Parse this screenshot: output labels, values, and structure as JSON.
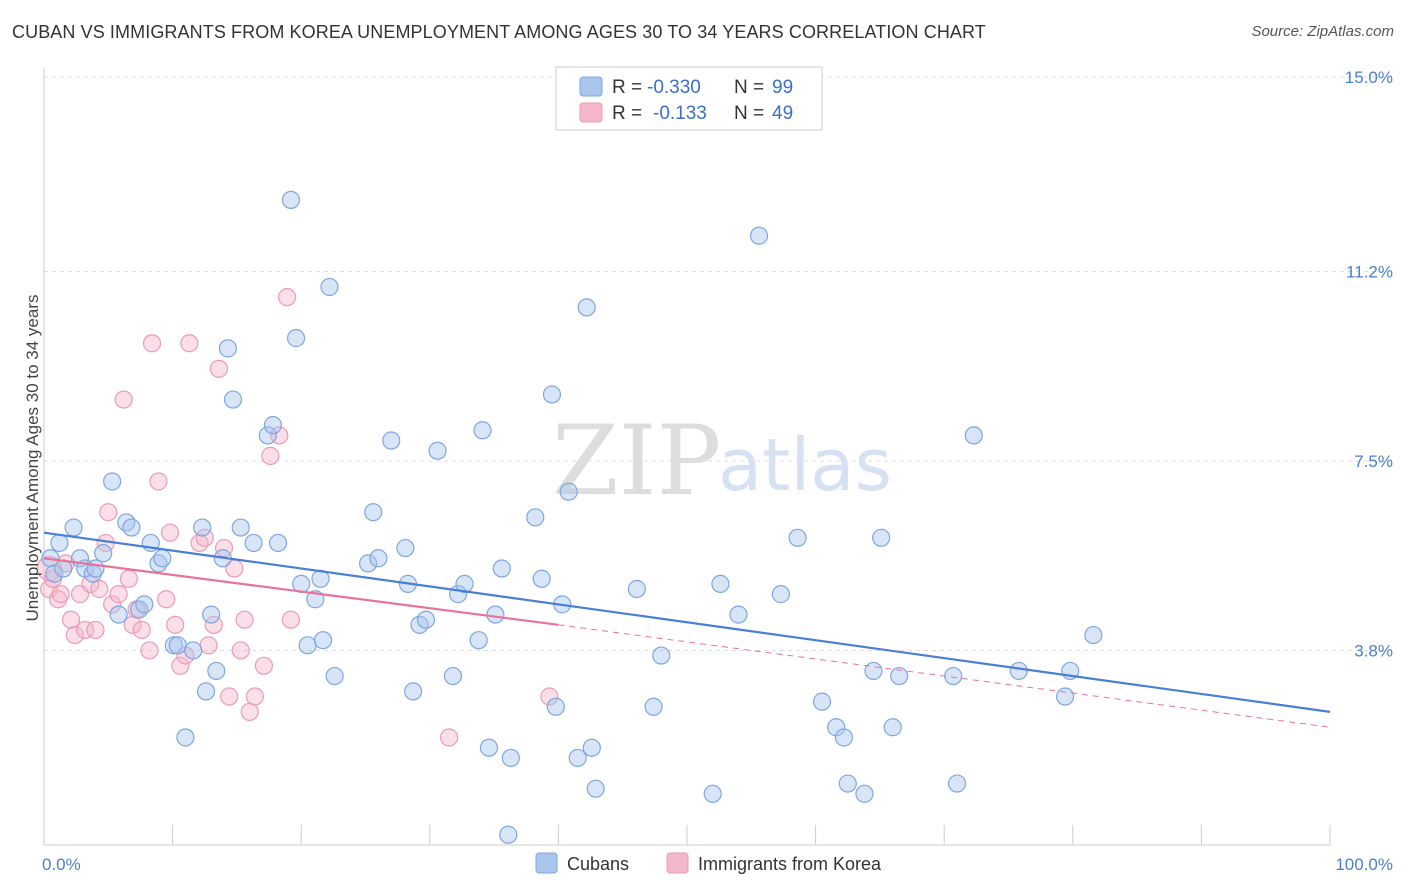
{
  "title": "CUBAN VS IMMIGRANTS FROM KOREA UNEMPLOYMENT AMONG AGES 30 TO 34 YEARS CORRELATION CHART",
  "source": "Source: ZipAtlas.com",
  "watermark": {
    "zip": "ZIP",
    "atlas": "atlas"
  },
  "legend": {
    "rows": [
      {
        "r_label": "R =",
        "r_value": "-0.330",
        "n_label": "N =",
        "n_value": "99",
        "color": "#a9c5ee"
      },
      {
        "r_label": "R =",
        "r_value": "-0.133",
        "n_label": "N =",
        "n_value": "49",
        "color": "#f5b8cb"
      }
    ]
  },
  "bottom_legend": [
    {
      "label": "Cubans",
      "color": "#a9c5ee"
    },
    {
      "label": "Immigrants from Korea",
      "color": "#f5b8cb"
    }
  ],
  "chart_data": {
    "type": "scatter",
    "title": "CUBAN VS IMMIGRANTS FROM KOREA UNEMPLOYMENT AMONG AGES 30 TO 34 YEARS CORRELATION CHART",
    "xlabel": "",
    "ylabel": "Unemployment Among Ages 30 to 34 years",
    "xlim": [
      0,
      100
    ],
    "ylim": [
      0,
      15.0
    ],
    "x_tick_labels": [
      "0.0%",
      "100.0%"
    ],
    "y_ticks": [
      3.8,
      7.5,
      11.2,
      15.0
    ],
    "y_tick_labels": [
      "3.8%",
      "7.5%",
      "11.2%",
      "15.0%"
    ],
    "grid": true,
    "colors": {
      "cubans": "#4a7fd6",
      "korea": "#e8729a",
      "cubans_fill": "#a9c5ee",
      "korea_fill": "#f5b8cb"
    },
    "series": [
      {
        "name": "Cubans",
        "trend": {
          "x0": 0,
          "y0": 6.1,
          "x1": 100,
          "y1": 2.6
        },
        "points": [
          [
            0.5,
            5.6
          ],
          [
            0.8,
            5.3
          ],
          [
            1.2,
            5.9
          ],
          [
            1.5,
            5.4
          ],
          [
            2.3,
            6.2
          ],
          [
            2.8,
            5.6
          ],
          [
            3.2,
            5.4
          ],
          [
            3.8,
            5.3
          ],
          [
            4.0,
            5.4
          ],
          [
            4.6,
            5.7
          ],
          [
            5.3,
            7.1
          ],
          [
            5.8,
            4.5
          ],
          [
            6.4,
            6.3
          ],
          [
            6.8,
            6.2
          ],
          [
            7.4,
            4.6
          ],
          [
            7.8,
            4.7
          ],
          [
            8.3,
            5.9
          ],
          [
            8.9,
            5.5
          ],
          [
            9.2,
            5.6
          ],
          [
            10.1,
            3.9
          ],
          [
            10.4,
            3.9
          ],
          [
            11.0,
            2.1
          ],
          [
            11.6,
            3.8
          ],
          [
            12.3,
            6.2
          ],
          [
            12.6,
            3.0
          ],
          [
            13.0,
            4.5
          ],
          [
            13.4,
            3.4
          ],
          [
            13.9,
            5.6
          ],
          [
            14.3,
            9.7
          ],
          [
            14.7,
            8.7
          ],
          [
            15.3,
            6.2
          ],
          [
            16.3,
            5.9
          ],
          [
            17.4,
            8.0
          ],
          [
            17.8,
            8.2
          ],
          [
            18.2,
            5.9
          ],
          [
            19.2,
            12.6
          ],
          [
            19.6,
            9.9
          ],
          [
            20.0,
            5.1
          ],
          [
            20.5,
            3.9
          ],
          [
            21.1,
            4.8
          ],
          [
            21.5,
            5.2
          ],
          [
            21.7,
            4.0
          ],
          [
            22.2,
            10.9
          ],
          [
            22.6,
            3.3
          ],
          [
            25.2,
            5.5
          ],
          [
            25.6,
            6.5
          ],
          [
            26.0,
            5.6
          ],
          [
            27.0,
            7.9
          ],
          [
            28.1,
            5.8
          ],
          [
            28.3,
            5.1
          ],
          [
            28.7,
            3.0
          ],
          [
            29.2,
            4.3
          ],
          [
            29.7,
            4.4
          ],
          [
            30.6,
            7.7
          ],
          [
            31.8,
            3.3
          ],
          [
            32.2,
            4.9
          ],
          [
            32.7,
            5.1
          ],
          [
            33.8,
            4.0
          ],
          [
            34.1,
            8.1
          ],
          [
            34.6,
            1.9
          ],
          [
            35.1,
            4.5
          ],
          [
            35.6,
            5.4
          ],
          [
            36.3,
            1.7
          ],
          [
            36.1,
            0.2
          ],
          [
            38.2,
            6.4
          ],
          [
            38.7,
            5.2
          ],
          [
            39.5,
            8.8
          ],
          [
            39.8,
            2.7
          ],
          [
            40.3,
            4.7
          ],
          [
            40.8,
            6.9
          ],
          [
            41.5,
            1.7
          ],
          [
            42.2,
            10.5
          ],
          [
            42.6,
            1.9
          ],
          [
            42.9,
            1.1
          ],
          [
            46.1,
            5.0
          ],
          [
            47.4,
            2.7
          ],
          [
            48.0,
            3.7
          ],
          [
            52.0,
            1.0
          ],
          [
            52.6,
            5.1
          ],
          [
            54.0,
            4.5
          ],
          [
            55.6,
            11.9
          ],
          [
            57.3,
            4.9
          ],
          [
            58.6,
            6.0
          ],
          [
            60.5,
            2.8
          ],
          [
            61.6,
            2.3
          ],
          [
            62.2,
            2.1
          ],
          [
            62.5,
            1.2
          ],
          [
            63.8,
            1.0
          ],
          [
            64.5,
            3.4
          ],
          [
            65.1,
            6.0
          ],
          [
            66.0,
            2.3
          ],
          [
            66.5,
            3.3
          ],
          [
            70.7,
            3.3
          ],
          [
            71.0,
            1.2
          ],
          [
            72.3,
            8.0
          ],
          [
            75.8,
            3.4
          ],
          [
            79.4,
            2.9
          ],
          [
            79.8,
            3.4
          ],
          [
            81.6,
            4.1
          ]
        ]
      },
      {
        "name": "Immigrants from Korea",
        "trend": {
          "x0": 0,
          "y0": 5.6,
          "x1": 40,
          "y1": 4.3
        },
        "trend_dashed": {
          "x0": 40,
          "y0": 4.3,
          "x1": 100,
          "y1": 2.3
        },
        "points": [
          [
            0.4,
            5.0
          ],
          [
            0.7,
            5.2
          ],
          [
            1.1,
            4.8
          ],
          [
            1.3,
            4.9
          ],
          [
            1.7,
            5.5
          ],
          [
            2.1,
            4.4
          ],
          [
            2.4,
            4.1
          ],
          [
            2.8,
            4.9
          ],
          [
            3.2,
            4.2
          ],
          [
            3.6,
            5.1
          ],
          [
            4.0,
            4.2
          ],
          [
            4.3,
            5.0
          ],
          [
            4.8,
            5.9
          ],
          [
            5.0,
            6.5
          ],
          [
            5.3,
            4.7
          ],
          [
            5.8,
            4.9
          ],
          [
            6.2,
            8.7
          ],
          [
            6.6,
            5.2
          ],
          [
            6.9,
            4.3
          ],
          [
            7.2,
            4.6
          ],
          [
            7.6,
            4.2
          ],
          [
            8.2,
            3.8
          ],
          [
            8.4,
            9.8
          ],
          [
            8.9,
            7.1
          ],
          [
            9.5,
            4.8
          ],
          [
            9.8,
            6.1
          ],
          [
            10.2,
            4.3
          ],
          [
            10.6,
            3.5
          ],
          [
            11.0,
            3.7
          ],
          [
            11.3,
            9.8
          ],
          [
            12.1,
            5.9
          ],
          [
            12.5,
            6.0
          ],
          [
            12.8,
            3.9
          ],
          [
            13.2,
            4.3
          ],
          [
            13.6,
            9.3
          ],
          [
            14.0,
            5.8
          ],
          [
            14.4,
            2.9
          ],
          [
            14.8,
            5.4
          ],
          [
            15.3,
            3.8
          ],
          [
            15.6,
            4.4
          ],
          [
            16.0,
            2.6
          ],
          [
            16.4,
            2.9
          ],
          [
            17.1,
            3.5
          ],
          [
            17.6,
            7.6
          ],
          [
            18.3,
            8.0
          ],
          [
            18.9,
            10.7
          ],
          [
            19.2,
            4.4
          ],
          [
            31.5,
            2.1
          ],
          [
            39.3,
            2.9
          ]
        ]
      }
    ]
  }
}
